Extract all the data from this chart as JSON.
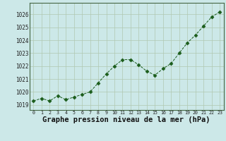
{
  "x": [
    0,
    1,
    2,
    3,
    4,
    5,
    6,
    7,
    8,
    9,
    10,
    11,
    12,
    13,
    14,
    15,
    16,
    17,
    18,
    19,
    20,
    21,
    22,
    23
  ],
  "y": [
    1019.3,
    1019.5,
    1019.3,
    1019.7,
    1019.4,
    1019.6,
    1019.8,
    1020.0,
    1020.7,
    1021.4,
    1022.0,
    1022.5,
    1022.5,
    1022.1,
    1021.6,
    1021.3,
    1021.8,
    1022.2,
    1023.0,
    1023.8,
    1024.4,
    1025.1,
    1025.8,
    1026.2
  ],
  "line_color": "#1a5c1a",
  "marker": "D",
  "marker_size": 2.5,
  "bg_color": "#cce8e8",
  "grid_color": "#b0c8b0",
  "xlabel": "Graphe pression niveau de la mer (hPa)",
  "xlabel_fontsize": 7.5,
  "ytick_labels": [
    "1019",
    "1020",
    "1021",
    "1022",
    "1023",
    "1024",
    "1025",
    "1026"
  ],
  "ytick_values": [
    1019,
    1020,
    1021,
    1022,
    1023,
    1024,
    1025,
    1026
  ],
  "ylim": [
    1018.6,
    1026.9
  ],
  "xlim": [
    -0.5,
    23.5
  ],
  "xtick_values": [
    0,
    1,
    2,
    3,
    4,
    5,
    6,
    7,
    8,
    9,
    10,
    11,
    12,
    13,
    14,
    15,
    16,
    17,
    18,
    19,
    20,
    21,
    22,
    23
  ]
}
